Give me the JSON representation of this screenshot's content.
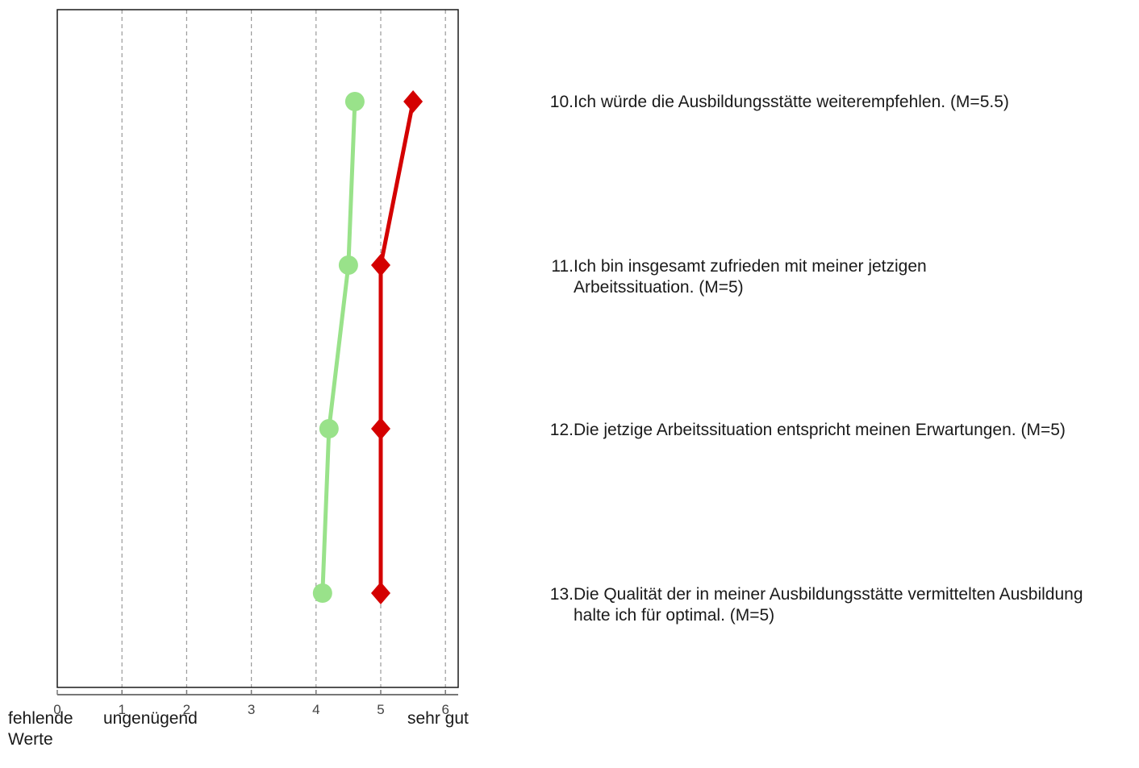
{
  "chart_data": {
    "type": "line",
    "orientation": "horizontal",
    "xlim": [
      0,
      6.2
    ],
    "x_ticks": [
      "0",
      "1",
      "2",
      "3",
      "4",
      "5",
      "6"
    ],
    "x_tick_values": [
      0,
      1,
      2,
      3,
      4,
      5,
      6
    ],
    "grid": "vertical dashed at 1-6",
    "scale_labels": [
      "fehlende\nWerte",
      "ungenügend",
      "sehr gut"
    ],
    "categories": [
      "Ich würde die Ausbildungsstätte weiterempfehlen. (M=5.5)",
      "Ich bin insgesamt zufrieden mit meiner jetzigen Arbeitssituation. (M=5)",
      "Die jetzige Arbeitssituation entspricht meinen Erwartungen. (M=5)",
      "Die Qualität der in meiner Ausbildungsstätte vermittelten Ausbildung halte ich für optimal. (M=5)"
    ],
    "item_numbers": [
      "10.",
      "11.",
      "12.",
      "13."
    ],
    "series": [
      {
        "color": "#99e28a",
        "marker": "circle",
        "values": [
          4.6,
          4.5,
          4.2,
          4.1
        ]
      },
      {
        "color": "#d40000",
        "marker": "diamond",
        "values": [
          5.5,
          5,
          5,
          5
        ]
      }
    ]
  }
}
